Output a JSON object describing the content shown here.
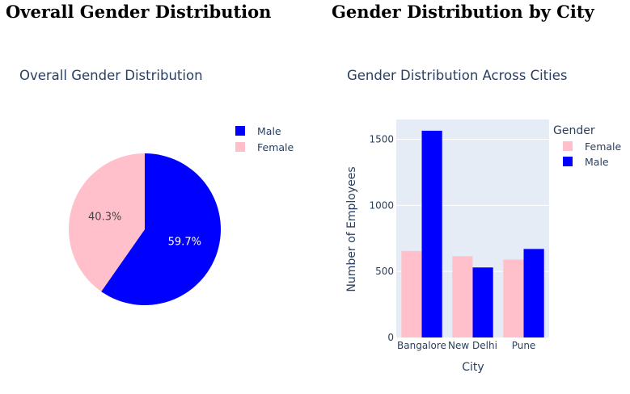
{
  "headings": {
    "left": "Overall Gender Distribution",
    "right": "Gender Distribution by City"
  },
  "colors": {
    "male": "#0000ff",
    "female": "#ffc0cb",
    "plot_bg": "#e5ecf6",
    "text": "#2a3f5f"
  },
  "chart_data": [
    {
      "type": "pie",
      "title": "Overall Gender Distribution",
      "slices": [
        {
          "name": "Male",
          "value": 59.7,
          "label": "59.7%",
          "color": "#0000ff"
        },
        {
          "name": "Female",
          "value": 40.3,
          "label": "40.3%",
          "color": "#ffc0cb"
        }
      ],
      "legend": {
        "entries": [
          "Male",
          "Female"
        ],
        "position": "top-right"
      }
    },
    {
      "type": "bar",
      "title": "Gender Distribution Across Cities",
      "xlabel": "City",
      "ylabel": "Number of Employees",
      "categories": [
        "Bangalore",
        "New Delhi",
        "Pune"
      ],
      "series": [
        {
          "name": "Female",
          "values": [
            655,
            615,
            590
          ],
          "color": "#ffc0cb"
        },
        {
          "name": "Male",
          "values": [
            1565,
            530,
            670
          ],
          "color": "#0000ff"
        }
      ],
      "ylim": [
        0,
        1650
      ],
      "yticks": [
        0,
        500,
        1000,
        1500
      ],
      "legend": {
        "title": "Gender",
        "entries": [
          "Female",
          "Male"
        ],
        "position": "right"
      },
      "grid": true
    }
  ]
}
